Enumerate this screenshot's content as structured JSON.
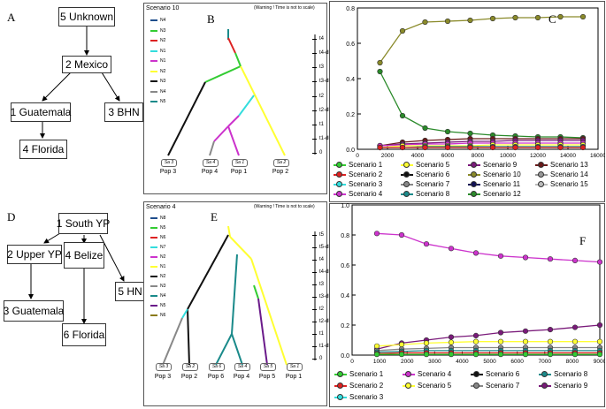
{
  "panel_a": {
    "letter": "A",
    "nodes": [
      "5 Unknown",
      "2 Mexico",
      "1 Guatemala",
      "3 BHN",
      "4 Florida"
    ]
  },
  "panel_d": {
    "letter": "D",
    "nodes": [
      "1 South YP",
      "2 Upper YP",
      "4 Belize",
      "5 HN",
      "3 Guatemala",
      "6 Florida"
    ]
  },
  "panel_b": {
    "letter": "B",
    "title": "Scenario 10",
    "warning": "(Warning ! Time is not to scale)",
    "legend": [
      {
        "label": "N4",
        "color": "#1f4e8c"
      },
      {
        "label": "N3",
        "color": "#33cc33"
      },
      {
        "label": "N2",
        "color": "#dd2222"
      },
      {
        "label": "N1",
        "color": "#33dddd"
      },
      {
        "label": "N1",
        "color": "#cc33cc"
      },
      {
        "label": "N2",
        "color": "#ffff33"
      },
      {
        "label": "N3",
        "color": "#111111"
      },
      {
        "label": "N4",
        "color": "#888888"
      },
      {
        "label": "N5",
        "color": "#1a8a8a"
      }
    ],
    "time_labels": [
      "t4",
      "t4-db",
      "t3",
      "t3-db",
      "t2",
      "t2-db",
      "t1",
      "t1-db",
      "0"
    ],
    "sources": [
      "Sa 3",
      "Sa 4",
      "Sa 1",
      "Sa 2"
    ],
    "pops": [
      "Pop 3",
      "Pop 4",
      "Pop 1",
      "Pop 2"
    ]
  },
  "panel_e": {
    "letter": "E",
    "title": "Scenario 4",
    "warning": "(Warning ! Time is not to scale)",
    "legend": [
      {
        "label": "N8",
        "color": "#1f4e8c"
      },
      {
        "label": "N5",
        "color": "#33cc33"
      },
      {
        "label": "N6",
        "color": "#dd2222"
      },
      {
        "label": "N7",
        "color": "#33dddd"
      },
      {
        "label": "N2",
        "color": "#cc33cc"
      },
      {
        "label": "N1",
        "color": "#ffff33"
      },
      {
        "label": "N2",
        "color": "#111111"
      },
      {
        "label": "N3",
        "color": "#888888"
      },
      {
        "label": "N4",
        "color": "#1a8a8a"
      },
      {
        "label": "N5",
        "color": "#6a1a8a"
      },
      {
        "label": "N6",
        "color": "#8a7a1a"
      }
    ],
    "time_labels": [
      "t5",
      "t5-db",
      "t4",
      "t4-db",
      "t3",
      "t3-db",
      "t2",
      "t2-db",
      "t1",
      "t1-db",
      "0"
    ],
    "sources": [
      "Sa 3",
      "Sa 2",
      "Sa 6",
      "Sa 4",
      "Sa 5",
      "Sa 1"
    ],
    "pops": [
      "Pop 3",
      "Pop 2",
      "Pop 6",
      "Pop 4",
      "Pop 5",
      "Pop 1"
    ]
  },
  "panel_c": {
    "letter": "C",
    "legend": [
      {
        "label": "Scenario 1",
        "color": "#33cc33"
      },
      {
        "label": "Scenario 5",
        "color": "#ffff33"
      },
      {
        "label": "Scenario 9",
        "color": "#7a1a7a"
      },
      {
        "label": "Scenario 13",
        "color": "#6a1a1a"
      },
      {
        "label": "Scenario 2",
        "color": "#dd2222"
      },
      {
        "label": "Scenario 6",
        "color": "#111111"
      },
      {
        "label": "Scenario 10",
        "color": "#8a8a2a"
      },
      {
        "label": "Scenario 14",
        "color": "#999999"
      },
      {
        "label": "Scenario 3",
        "color": "#33dddd"
      },
      {
        "label": "Scenario 7",
        "color": "#888888"
      },
      {
        "label": "Scenario 11",
        "color": "#111155"
      },
      {
        "label": "Scenario 15",
        "color": "#bbbbbb"
      },
      {
        "label": "Scenario 4",
        "color": "#cc33cc"
      },
      {
        "label": "Scenario 8",
        "color": "#1a8a8a"
      },
      {
        "label": "Scenario 12",
        "color": "#2a8a2a"
      }
    ]
  },
  "panel_f": {
    "letter": "F",
    "legend": [
      {
        "label": "Scenario 1",
        "color": "#33cc33"
      },
      {
        "label": "Scenario 4",
        "color": "#cc33cc"
      },
      {
        "label": "Scenario 6",
        "color": "#111111"
      },
      {
        "label": "Scenario 8",
        "color": "#1a8a8a"
      },
      {
        "label": "Scenario 2",
        "color": "#dd2222"
      },
      {
        "label": "Scenario 5",
        "color": "#ffff33"
      },
      {
        "label": "Scenario 7",
        "color": "#888888"
      },
      {
        "label": "Scenario 9",
        "color": "#7a1a7a"
      },
      {
        "label": "Scenario 3",
        "color": "#33dddd"
      }
    ]
  },
  "chart_data": [
    {
      "id": "C",
      "type": "line",
      "xlim": [
        0,
        16000
      ],
      "ylim": [
        0,
        0.8
      ],
      "xticks": [
        0,
        2000,
        4000,
        6000,
        8000,
        10000,
        12000,
        14000,
        16000
      ],
      "yticks": [
        0.0,
        0.2,
        0.4,
        0.6,
        0.8
      ],
      "x": [
        1500,
        3000,
        4500,
        6000,
        7500,
        9000,
        10500,
        12000,
        13500,
        15000
      ],
      "series": [
        {
          "name": "Scenario 10",
          "color": "#8a8a2a",
          "values": [
            0.49,
            0.67,
            0.72,
            0.725,
            0.73,
            0.74,
            0.745,
            0.745,
            0.75,
            0.75
          ]
        },
        {
          "name": "Scenario 12",
          "color": "#2a8a2a",
          "values": [
            0.44,
            0.19,
            0.12,
            0.1,
            0.09,
            0.08,
            0.075,
            0.07,
            0.07,
            0.065
          ]
        },
        {
          "name": "Scenario 13",
          "color": "#6a1a1a",
          "values": [
            0.02,
            0.04,
            0.05,
            0.055,
            0.06,
            0.06,
            0.06,
            0.06,
            0.06,
            0.06
          ]
        },
        {
          "name": "Scenario 9",
          "color": "#7a1a7a",
          "values": [
            0.02,
            0.03,
            0.035,
            0.04,
            0.045,
            0.045,
            0.05,
            0.05,
            0.05,
            0.05
          ]
        },
        {
          "name": "Scenario 4",
          "color": "#cc33cc",
          "values": [
            0.02,
            0.025,
            0.03,
            0.03,
            0.035,
            0.035,
            0.035,
            0.035,
            0.035,
            0.035
          ]
        },
        {
          "name": "Scenario 5",
          "color": "#ffff33",
          "values": [
            0.01,
            0.02,
            0.02,
            0.02,
            0.02,
            0.025,
            0.025,
            0.025,
            0.025,
            0.025
          ]
        },
        {
          "name": "Scenario 8",
          "color": "#1a8a8a",
          "values": [
            0.01,
            0.01,
            0.015,
            0.015,
            0.015,
            0.015,
            0.015,
            0.015,
            0.015,
            0.015
          ]
        },
        {
          "name": "Scenario 2",
          "color": "#dd2222",
          "values": [
            0.01,
            0.01,
            0.01,
            0.01,
            0.01,
            0.01,
            0.01,
            0.01,
            0.01,
            0.01
          ]
        }
      ]
    },
    {
      "id": "F",
      "type": "line",
      "xlim": [
        0,
        9000
      ],
      "ylim": [
        0,
        1.0
      ],
      "xticks": [
        0,
        1000,
        2000,
        3000,
        4000,
        5000,
        6000,
        7000,
        8000,
        9000
      ],
      "yticks": [
        0.0,
        0.2,
        0.4,
        0.6,
        0.8,
        1.0
      ],
      "x": [
        900,
        1800,
        2700,
        3600,
        4500,
        5400,
        6300,
        7200,
        8100,
        9000
      ],
      "series": [
        {
          "name": "Scenario 4",
          "color": "#cc33cc",
          "values": [
            0.81,
            0.8,
            0.74,
            0.71,
            0.68,
            0.66,
            0.65,
            0.64,
            0.63,
            0.62
          ]
        },
        {
          "name": "Scenario 9",
          "color": "#7a1a7a",
          "values": [
            0.04,
            0.08,
            0.1,
            0.12,
            0.13,
            0.15,
            0.16,
            0.17,
            0.185,
            0.2
          ]
        },
        {
          "name": "Scenario 5",
          "color": "#ffff33",
          "values": [
            0.06,
            0.07,
            0.08,
            0.085,
            0.09,
            0.09,
            0.09,
            0.09,
            0.09,
            0.09
          ]
        },
        {
          "name": "Scenario 7",
          "color": "#888888",
          "values": [
            0.03,
            0.04,
            0.045,
            0.05,
            0.05,
            0.05,
            0.05,
            0.05,
            0.05,
            0.05
          ]
        },
        {
          "name": "Scenario 8",
          "color": "#1a8a8a",
          "values": [
            0.02,
            0.025,
            0.03,
            0.03,
            0.03,
            0.03,
            0.03,
            0.03,
            0.03,
            0.03
          ]
        },
        {
          "name": "Scenario 2",
          "color": "#dd2222",
          "values": [
            0.01,
            0.015,
            0.015,
            0.015,
            0.015,
            0.015,
            0.015,
            0.015,
            0.015,
            0.015
          ]
        },
        {
          "name": "Scenario 1",
          "color": "#33cc33",
          "values": [
            0.005,
            0.005,
            0.005,
            0.005,
            0.005,
            0.005,
            0.005,
            0.005,
            0.005,
            0.005
          ]
        }
      ]
    }
  ]
}
